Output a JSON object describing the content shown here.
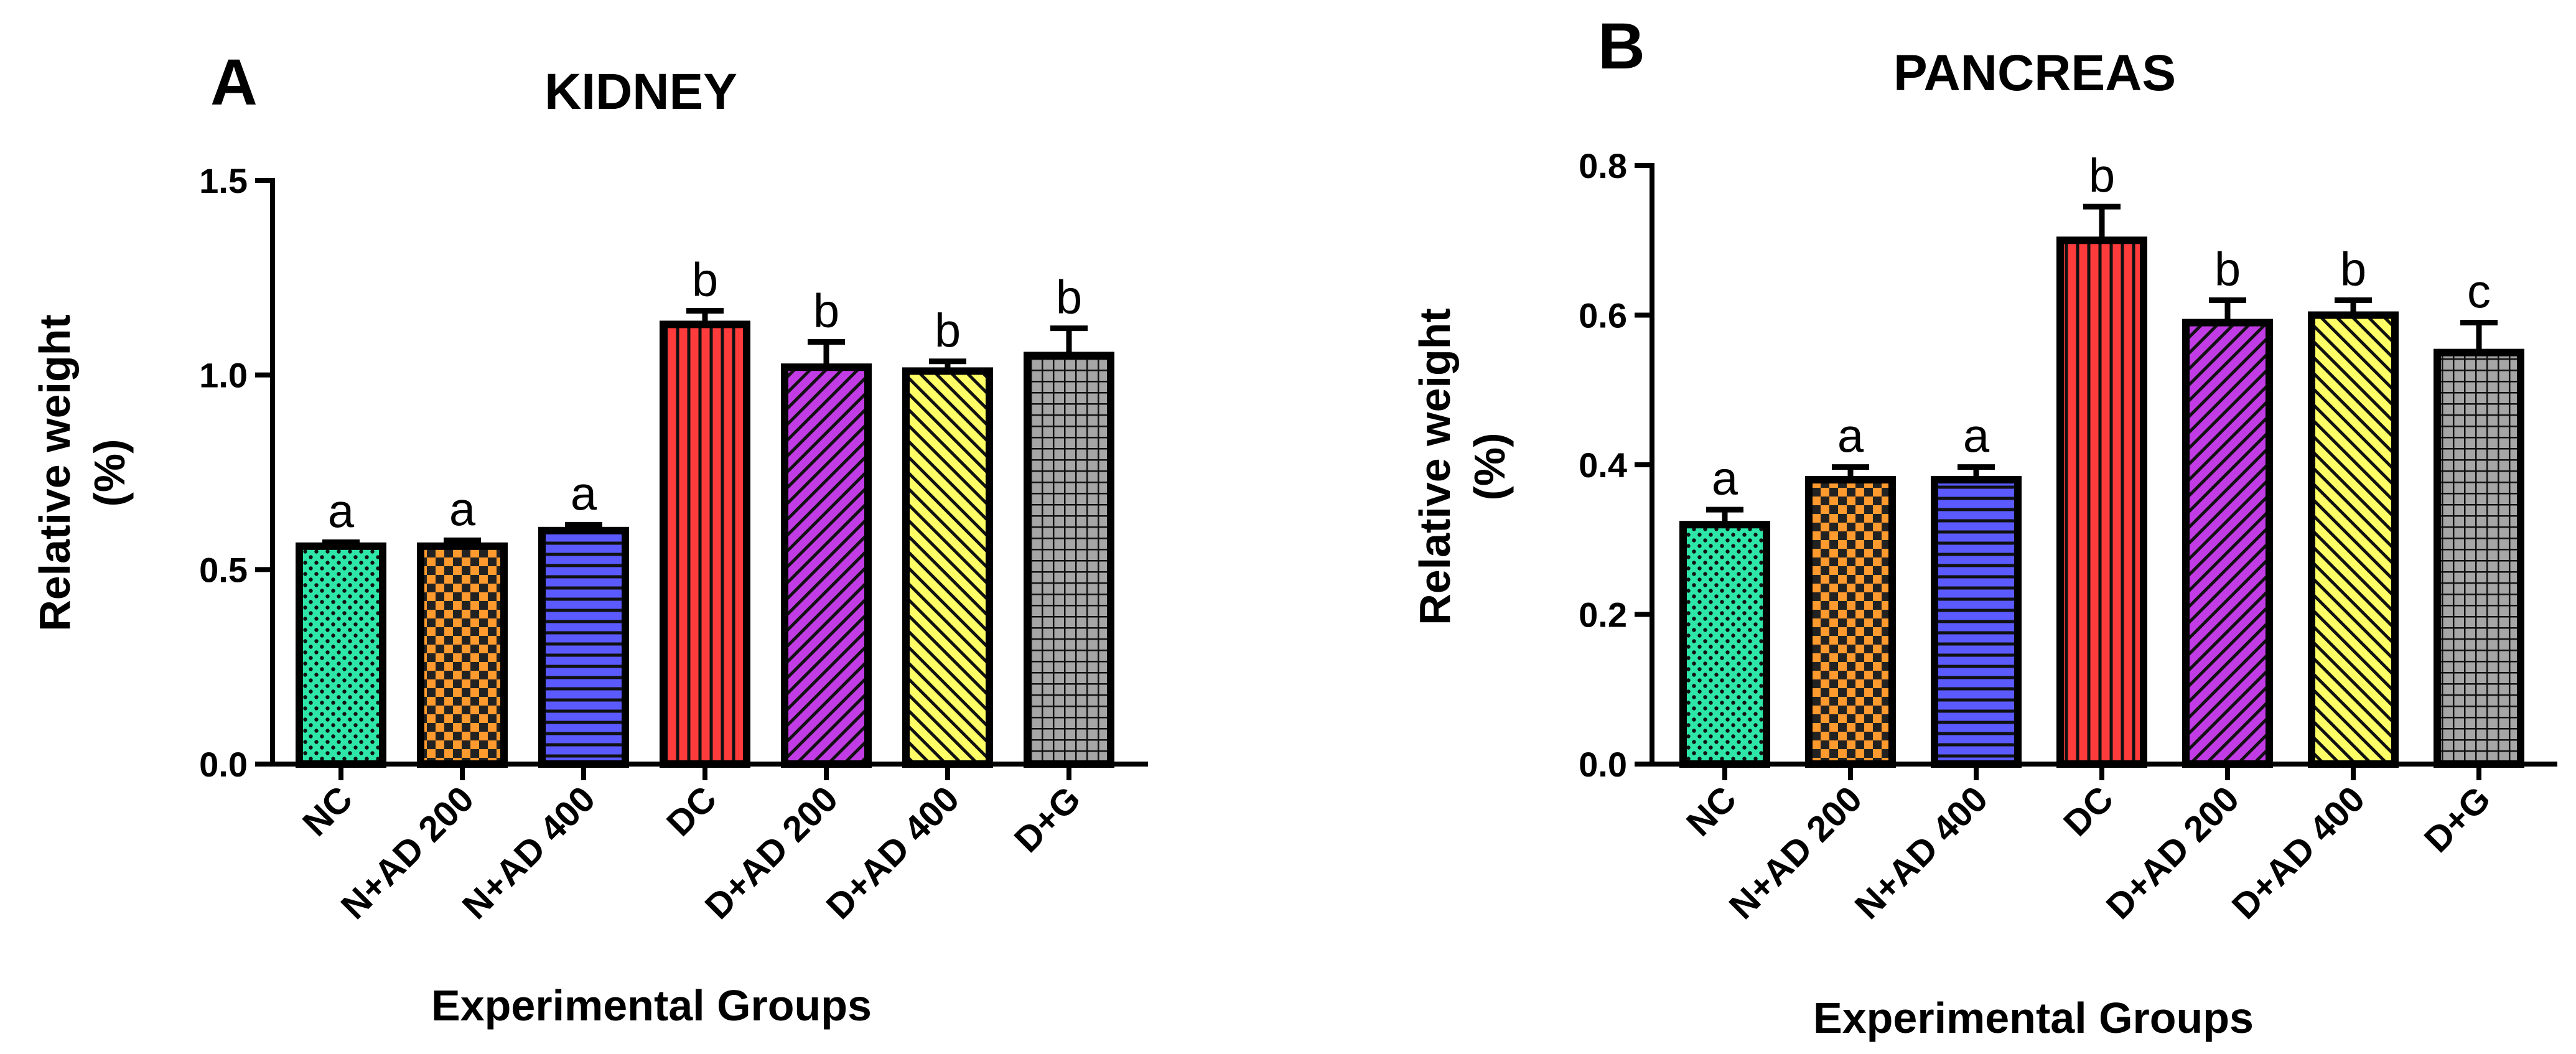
{
  "chart_data": [
    {
      "type": "bar",
      "panel": "A",
      "title": "KIDNEY",
      "xlabel": "Experimental Groups",
      "ylabel_line1": "Relative weight",
      "ylabel_line2": "(%)",
      "ylim": [
        0,
        1.5
      ],
      "yticks": [
        "0.0",
        "0.5",
        "1.0",
        "1.5"
      ],
      "categories": [
        "NC",
        "N+AD 200",
        "N+AD 400",
        "DC",
        "D+AD 200",
        "D+AD 400",
        "D+G"
      ],
      "values": [
        0.56,
        0.56,
        0.6,
        1.13,
        1.02,
        1.01,
        1.05
      ],
      "errors": [
        0.01,
        0.015,
        0.015,
        0.035,
        0.065,
        0.025,
        0.07
      ],
      "letters": [
        "a",
        "a",
        "a",
        "b",
        "b",
        "b",
        "b"
      ]
    },
    {
      "type": "bar",
      "panel": "B",
      "title": "PANCREAS",
      "xlabel": "Experimental Groups",
      "ylabel_line1": "Relative weight",
      "ylabel_line2": "(%)",
      "ylim": [
        0,
        0.8
      ],
      "yticks": [
        "0.0",
        "0.2",
        "0.4",
        "0.6",
        "0.8"
      ],
      "categories": [
        "NC",
        "N+AD 200",
        "N+AD 400",
        "DC",
        "D+AD 200",
        "D+AD 400",
        "D+G"
      ],
      "values": [
        0.32,
        0.38,
        0.38,
        0.7,
        0.59,
        0.6,
        0.55
      ],
      "errors": [
        0.02,
        0.017,
        0.017,
        0.045,
        0.03,
        0.02,
        0.04
      ],
      "letters": [
        "a",
        "a",
        "a",
        "b",
        "b",
        "b",
        "c"
      ]
    }
  ],
  "bar_styles": [
    {
      "pattern": "dots",
      "fill": "#2ee6a8"
    },
    {
      "pattern": "checker",
      "fill": "#ff9a2e"
    },
    {
      "pattern": "hlines",
      "fill": "#5a5aff"
    },
    {
      "pattern": "vlines",
      "fill": "#ff3b3b"
    },
    {
      "pattern": "diag-right",
      "fill": "#c23ce6"
    },
    {
      "pattern": "diag-left",
      "fill": "#ffff66"
    },
    {
      "pattern": "grid",
      "fill": "#a6a6a6"
    }
  ]
}
